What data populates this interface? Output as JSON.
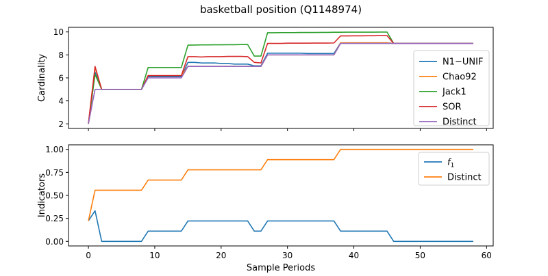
{
  "figure": {
    "title": "basketball position (Q1148974)"
  },
  "chart_data": [
    {
      "type": "line",
      "ylabel": "Cardinality",
      "xlabel": "",
      "xlim": [
        -3,
        61
      ],
      "ylim": [
        1.6,
        10.4
      ],
      "xticks": [
        0,
        10,
        20,
        30,
        40,
        50,
        60
      ],
      "yticks": [
        2,
        4,
        6,
        8,
        10
      ],
      "show_xtick_labels": false,
      "grid": false,
      "legend": "right",
      "x": [
        0,
        1,
        2,
        3,
        4,
        5,
        6,
        7,
        8,
        9,
        10,
        11,
        12,
        13,
        14,
        15,
        16,
        17,
        18,
        19,
        20,
        21,
        22,
        23,
        24,
        25,
        26,
        27,
        28,
        29,
        30,
        31,
        32,
        33,
        34,
        35,
        36,
        37,
        38,
        39,
        40,
        41,
        42,
        43,
        44,
        45,
        46,
        47,
        48,
        49,
        50,
        51,
        52,
        53,
        54,
        55,
        56,
        57,
        58
      ],
      "series": [
        {
          "name": "N1−UNIF",
          "color": "#1f77b4",
          "values": [
            2.0,
            6.5,
            5.0,
            5.0,
            5.0,
            5.0,
            5.0,
            5.0,
            5.0,
            6.1,
            6.1,
            6.1,
            6.1,
            6.1,
            6.1,
            7.35,
            7.35,
            7.3,
            7.3,
            7.3,
            7.25,
            7.25,
            7.2,
            7.2,
            7.2,
            7.05,
            7.05,
            8.15,
            8.15,
            8.15,
            8.15,
            8.15,
            8.15,
            8.12,
            8.12,
            8.12,
            8.12,
            8.12,
            9.05,
            9.05,
            9.05,
            9.05,
            9.05,
            9.05,
            9.05,
            9.05,
            9.0,
            9.0,
            9.0,
            9.0,
            9.0,
            9.0,
            9.0,
            9.0,
            9.0,
            9.0,
            9.0,
            9.0,
            9.0
          ]
        },
        {
          "name": "Chao92",
          "color": "#ff7f0e",
          "values": [
            2.0,
            6.9,
            5.0,
            5.0,
            5.0,
            5.0,
            5.0,
            5.0,
            5.0,
            6.2,
            6.2,
            6.2,
            6.2,
            6.2,
            6.2,
            7.0,
            7.0,
            7.0,
            7.0,
            7.0,
            7.0,
            7.0,
            7.0,
            7.0,
            7.0,
            7.0,
            7.0,
            8.0,
            8.0,
            8.0,
            8.0,
            8.0,
            8.0,
            8.0,
            8.0,
            8.0,
            8.0,
            8.0,
            9.05,
            9.05,
            9.05,
            9.05,
            9.05,
            9.05,
            9.05,
            9.05,
            9.0,
            9.0,
            9.0,
            9.0,
            9.0,
            9.0,
            9.0,
            9.0,
            9.0,
            9.0,
            9.0,
            9.0,
            9.0
          ]
        },
        {
          "name": "Jack1",
          "color": "#2ca02c",
          "values": [
            2.0,
            6.3,
            5.0,
            5.0,
            5.0,
            5.0,
            5.0,
            5.0,
            5.0,
            6.9,
            6.9,
            6.9,
            6.9,
            6.9,
            6.9,
            8.85,
            8.86,
            8.87,
            8.87,
            8.88,
            8.88,
            8.89,
            8.89,
            8.9,
            8.9,
            7.9,
            7.9,
            9.93,
            9.93,
            9.94,
            9.94,
            9.94,
            9.95,
            9.95,
            9.95,
            9.96,
            9.96,
            9.97,
            9.97,
            9.98,
            9.98,
            9.98,
            9.98,
            9.98,
            9.99,
            9.99,
            9.0,
            9.0,
            9.0,
            9.0,
            9.0,
            9.0,
            9.0,
            9.0,
            9.0,
            9.0,
            9.0,
            9.0,
            9.0
          ]
        },
        {
          "name": "SOR",
          "color": "#d62728",
          "values": [
            2.0,
            7.0,
            5.0,
            5.0,
            5.0,
            5.0,
            5.0,
            5.0,
            5.0,
            6.2,
            6.2,
            6.2,
            6.2,
            6.2,
            6.2,
            7.85,
            7.85,
            7.82,
            7.85,
            7.85,
            7.85,
            7.87,
            7.87,
            7.87,
            7.85,
            7.35,
            7.3,
            9.0,
            9.0,
            9.0,
            9.02,
            9.02,
            9.02,
            9.02,
            9.03,
            9.03,
            9.03,
            9.04,
            9.65,
            9.65,
            9.66,
            9.66,
            9.67,
            9.67,
            9.68,
            9.68,
            9.0,
            9.0,
            9.0,
            9.0,
            9.0,
            9.0,
            9.0,
            9.0,
            9.0,
            9.0,
            9.0,
            9.0,
            9.0
          ]
        },
        {
          "name": "Distinct",
          "color": "#9467bd",
          "values": [
            2.0,
            5.0,
            5.0,
            5.0,
            5.0,
            5.0,
            5.0,
            5.0,
            5.0,
            6.0,
            6.0,
            6.0,
            6.0,
            6.0,
            6.0,
            7.0,
            7.0,
            7.0,
            7.0,
            7.0,
            7.0,
            7.0,
            7.0,
            7.0,
            7.0,
            7.0,
            7.0,
            8.0,
            8.0,
            8.0,
            8.0,
            8.0,
            8.0,
            8.0,
            8.0,
            8.0,
            8.0,
            8.0,
            9.0,
            9.0,
            9.0,
            9.0,
            9.0,
            9.0,
            9.0,
            9.0,
            9.0,
            9.0,
            9.0,
            9.0,
            9.0,
            9.0,
            9.0,
            9.0,
            9.0,
            9.0,
            9.0,
            9.0,
            9.0
          ]
        }
      ]
    },
    {
      "type": "line",
      "ylabel": "Indicators",
      "xlabel": "Sample Periods",
      "xlim": [
        -3,
        61
      ],
      "ylim": [
        -0.05,
        1.05
      ],
      "xticks": [
        0,
        10,
        20,
        30,
        40,
        50,
        60
      ],
      "yticks": [
        0.0,
        0.25,
        0.5,
        0.75,
        1.0
      ],
      "ytick_labels": [
        "0.00",
        "0.25",
        "0.50",
        "0.75",
        "1.00"
      ],
      "show_xtick_labels": true,
      "grid": false,
      "legend": "top-right",
      "x": [
        0,
        1,
        2,
        3,
        4,
        5,
        6,
        7,
        8,
        9,
        10,
        11,
        12,
        13,
        14,
        15,
        16,
        17,
        18,
        19,
        20,
        21,
        22,
        23,
        24,
        25,
        26,
        27,
        28,
        29,
        30,
        31,
        32,
        33,
        34,
        35,
        36,
        37,
        38,
        39,
        40,
        41,
        42,
        43,
        44,
        45,
        46,
        47,
        48,
        49,
        50,
        51,
        52,
        53,
        54,
        55,
        56,
        57,
        58
      ],
      "series": [
        {
          "name": "f",
          "subscript": "1",
          "color": "#1f77b4",
          "values": [
            0.222,
            0.333,
            0.0,
            0.0,
            0.0,
            0.0,
            0.0,
            0.0,
            0.0,
            0.111,
            0.111,
            0.111,
            0.111,
            0.111,
            0.111,
            0.222,
            0.222,
            0.222,
            0.222,
            0.222,
            0.222,
            0.222,
            0.222,
            0.222,
            0.222,
            0.111,
            0.111,
            0.222,
            0.222,
            0.222,
            0.222,
            0.222,
            0.222,
            0.222,
            0.222,
            0.222,
            0.222,
            0.222,
            0.111,
            0.111,
            0.111,
            0.111,
            0.111,
            0.111,
            0.111,
            0.111,
            0.0,
            0.0,
            0.0,
            0.0,
            0.0,
            0.0,
            0.0,
            0.0,
            0.0,
            0.0,
            0.0,
            0.0,
            0.0
          ]
        },
        {
          "name": "Distinct",
          "color": "#ff7f0e",
          "values": [
            0.222,
            0.556,
            0.556,
            0.556,
            0.556,
            0.556,
            0.556,
            0.556,
            0.556,
            0.667,
            0.667,
            0.667,
            0.667,
            0.667,
            0.667,
            0.778,
            0.778,
            0.778,
            0.778,
            0.778,
            0.778,
            0.778,
            0.778,
            0.778,
            0.778,
            0.778,
            0.778,
            0.889,
            0.889,
            0.889,
            0.889,
            0.889,
            0.889,
            0.889,
            0.889,
            0.889,
            0.889,
            0.889,
            1.0,
            1.0,
            1.0,
            1.0,
            1.0,
            1.0,
            1.0,
            1.0,
            1.0,
            1.0,
            1.0,
            1.0,
            1.0,
            1.0,
            1.0,
            1.0,
            1.0,
            1.0,
            1.0,
            1.0,
            1.0
          ]
        }
      ]
    }
  ]
}
